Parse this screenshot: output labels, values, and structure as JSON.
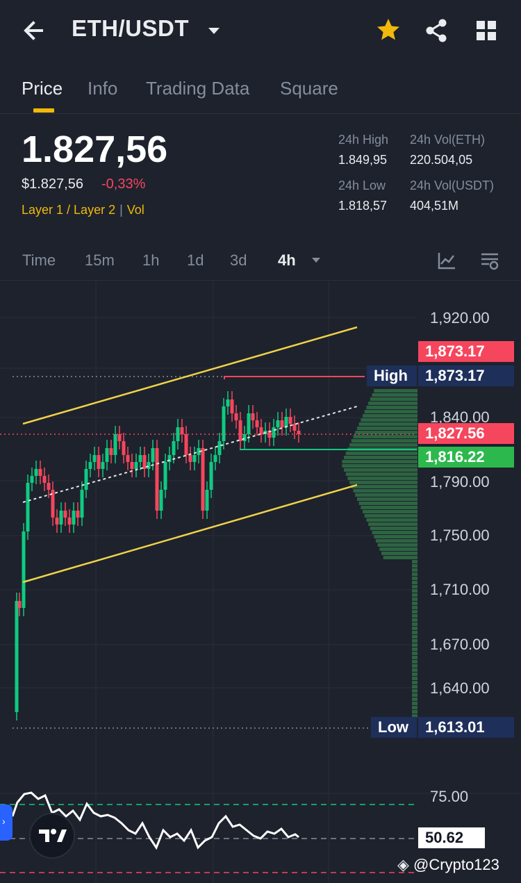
{
  "header": {
    "pair": "ETH/USDT"
  },
  "tabs": [
    {
      "label": "Price"
    },
    {
      "label": "Info"
    },
    {
      "label": "Trading Data"
    },
    {
      "label": "Square"
    }
  ],
  "ticker": {
    "last_price": "1.827,56",
    "usd_price": "$1.827,56",
    "change": "-0,33%",
    "tag1": "Layer 1 / Layer 2",
    "tag2": "Vol",
    "high_label": "24h High",
    "high_value": "1.849,95",
    "vol_eth_label": "24h Vol(ETH)",
    "vol_eth_value": "220.504,05",
    "low_label": "24h Low",
    "low_value": "1.818,57",
    "vol_usdt_label": "24h Vol(USDT)",
    "vol_usdt_value": "404,51M"
  },
  "timeframes": [
    {
      "label": "Time"
    },
    {
      "label": "15m"
    },
    {
      "label": "1h"
    },
    {
      "label": "1d"
    },
    {
      "label": "3d"
    },
    {
      "label": "4h"
    }
  ],
  "colors": {
    "up": "#0ecb81",
    "down": "#f6465d",
    "accent": "#f0b90b",
    "tag_blue": "#1e2f5a"
  },
  "chart": {
    "price_axis": [
      "1,920.00",
      "1,840.00",
      "1,790.00",
      "1,750.00",
      "1,710.00",
      "1,670.00",
      "1,640.00"
    ],
    "high_label": "High",
    "high_value": "1,873.17",
    "alert_value": "1,873.17",
    "last_value": "1,827.56",
    "green_value": "1,816.22",
    "low_label": "Low",
    "low_value": "1,613.01",
    "rsi_level": "75.00",
    "rsi_value": "50.62"
  },
  "watermark": "@Crypto123"
}
